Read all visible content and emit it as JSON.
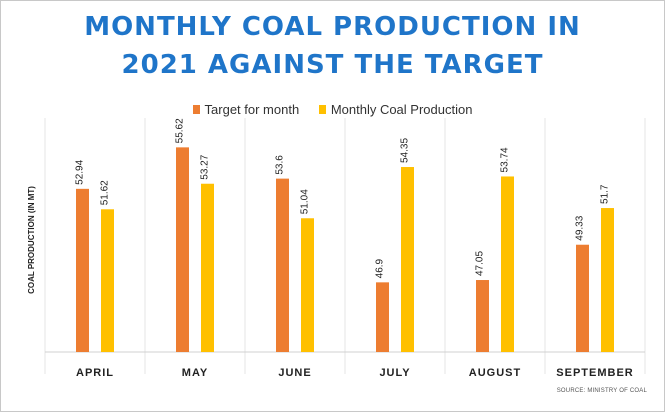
{
  "title_line1": "MONTHLY COAL PRODUCTION IN",
  "title_line2": "2021 AGAINST THE TARGET",
  "source": "SOURCE: MINISTRY OF COAL",
  "colors": {
    "target": "#ED7D31",
    "production": "#FFC000",
    "title": "#1F75C9"
  },
  "chart_data": {
    "type": "bar",
    "title": "MONTHLY COAL PRODUCTION IN 2021 AGAINST THE TARGET",
    "xlabel": "",
    "ylabel": "COAL PRODUCTION (IN MT)",
    "categories": [
      "APRIL",
      "MAY",
      "JUNE",
      "JULY",
      "AUGUST",
      "SEPTEMBER"
    ],
    "series": [
      {
        "name": "Target for month",
        "values": [
          52.94,
          55.62,
          53.6,
          46.9,
          47.05,
          49.33
        ]
      },
      {
        "name": "Monthly Coal Production",
        "values": [
          51.62,
          53.27,
          51.04,
          54.35,
          53.74,
          51.7
        ]
      }
    ],
    "value_labels": [
      [
        "52.94",
        "55.62",
        "53.6",
        "46.9",
        "47.05",
        "49.33"
      ],
      [
        "51.62",
        "53.27",
        "51.04",
        "54.35",
        "53.74",
        "51.7"
      ]
    ],
    "ylim": [
      42.4,
      57.0
    ],
    "grid": "vertical separators between categories",
    "legend": "top-center"
  }
}
